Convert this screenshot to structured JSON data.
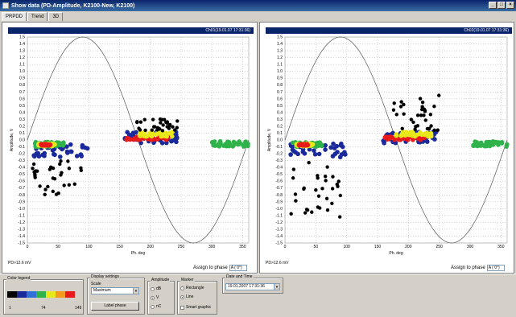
{
  "window": {
    "title": "Show data (PD-Amplitude, K2100-New, K2100)"
  },
  "tabs": [
    {
      "label": "PRPDD"
    },
    {
      "label": "Trend"
    },
    {
      "label": "3D"
    }
  ],
  "panels": [
    {
      "header": "Ch01(19.01.07 17:31:36)",
      "pd_label": "PD>12.6 mV",
      "assign_label": "Assign to phase",
      "assign_value": "A ( 0°)"
    },
    {
      "header": "Ch02(19.01.07 17:31:36)",
      "pd_label": "PD>12.6 mV",
      "assign_label": "Assign to phase",
      "assign_value": "A ( 0°)"
    }
  ],
  "bottom": {
    "color_legend": {
      "title": "Color legend",
      "min": "1",
      "mid": "74",
      "max": "149",
      "colors": [
        "#000000",
        "#1a2a9a",
        "#2f6fd6",
        "#2fb24a",
        "#e8e81a",
        "#f59a1a",
        "#e81a1a"
      ]
    },
    "display_settings": {
      "title": "Display settings",
      "scale_label": "Scale",
      "scale_value": "Maximum",
      "button_label": "Label phase"
    },
    "amplitude": {
      "title": "Amplitude",
      "options": [
        "dB",
        "V",
        "nC"
      ],
      "selected": 1
    },
    "marker": {
      "title": "Marker",
      "options": [
        "Rectangle",
        "Line"
      ],
      "selected": 1,
      "checkbox_label": "Smart graphic"
    },
    "date_time": {
      "title": "Date and Time",
      "value": "19.01.2007 17:31:36"
    }
  },
  "chart_data": [
    {
      "type": "scatter",
      "title": "Ch01(19.01.07 17:31:36)",
      "xlabel": "Ph. deg",
      "ylabel": "Amplitude, V",
      "xlim": [
        0,
        360
      ],
      "ylim": [
        -1.5,
        1.5
      ],
      "x_ticks": [
        0,
        50,
        100,
        150,
        200,
        250,
        300,
        350
      ],
      "y_ticks": [
        1.5,
        1.4,
        1.3,
        1.2,
        1.1,
        1.0,
        0.9,
        0.8,
        0.7,
        0.6,
        0.5,
        0.4,
        0.3,
        0.2,
        0.1,
        0.0,
        -0.1,
        -0.2,
        -0.3,
        -0.4,
        -0.5,
        -0.6,
        -0.7,
        -0.8,
        -0.9,
        -1.0,
        -1.1,
        -1.2,
        -1.3,
        -1.4,
        -1.5
      ],
      "reference": "sine, amplitude 1.5, period 360 deg",
      "clusters": [
        {
          "xr": [
            8,
            98
          ],
          "yr": [
            -0.05,
            -0.25
          ],
          "color": "#1a2a9a"
        },
        {
          "xr": [
            12,
            60
          ],
          "yr": [
            -0.03,
            -0.1
          ],
          "color": "#2fb24a"
        },
        {
          "xr": [
            18,
            45
          ],
          "yr": [
            -0.05,
            -0.09
          ],
          "color": "#e8e81a"
        },
        {
          "xr": [
            22,
            38
          ],
          "yr": [
            -0.06,
            -0.08
          ],
          "color": "#e81a1a"
        },
        {
          "xr": [
            8,
            90
          ],
          "yr": [
            -0.3,
            -0.85
          ],
          "color": "#000000"
        },
        {
          "xr": [
            155,
            245
          ],
          "yr": [
            -0.05,
            0.12
          ],
          "color": "#1a2a9a"
        },
        {
          "xr": [
            160,
            230
          ],
          "yr": [
            0.0,
            0.05
          ],
          "color": "#e81a1a"
        },
        {
          "xr": [
            180,
            240
          ],
          "yr": [
            0.05,
            0.12
          ],
          "color": "#e8e81a"
        },
        {
          "xr": [
            175,
            245
          ],
          "yr": [
            0.12,
            0.32
          ],
          "color": "#000000"
        },
        {
          "xr": [
            300,
            360
          ],
          "yr": [
            -0.1,
            -0.02
          ],
          "color": "#2fb24a"
        }
      ]
    },
    {
      "type": "scatter",
      "title": "Ch02(19.01.07 17:31:36)",
      "xlabel": "Ph. deg",
      "ylabel": "Amplitude, V",
      "xlim": [
        0,
        360
      ],
      "ylim": [
        -1.5,
        1.5
      ],
      "x_ticks": [
        0,
        50,
        100,
        150,
        200,
        250,
        300,
        350
      ],
      "y_ticks": [
        1.5,
        1.4,
        1.3,
        1.2,
        1.1,
        1.0,
        0.9,
        0.8,
        0.7,
        0.6,
        0.5,
        0.4,
        0.3,
        0.2,
        0.1,
        0.0,
        -0.1,
        -0.2,
        -0.3,
        -0.4,
        -0.5,
        -0.6,
        -0.7,
        -0.8,
        -0.9,
        -1.0,
        -1.1,
        -1.2,
        -1.3,
        -1.4,
        -1.5
      ],
      "reference": "sine, amplitude 1.5, period 360 deg",
      "clusters": [
        {
          "xr": [
            8,
            98
          ],
          "yr": [
            -0.05,
            -0.25
          ],
          "color": "#1a2a9a"
        },
        {
          "xr": [
            12,
            60
          ],
          "yr": [
            -0.03,
            -0.1
          ],
          "color": "#2fb24a"
        },
        {
          "xr": [
            18,
            45
          ],
          "yr": [
            -0.05,
            -0.09
          ],
          "color": "#e8e81a"
        },
        {
          "xr": [
            22,
            38
          ],
          "yr": [
            -0.06,
            -0.08
          ],
          "color": "#e81a1a"
        },
        {
          "xr": [
            8,
            90
          ],
          "yr": [
            -0.3,
            -1.15
          ],
          "color": "#000000"
        },
        {
          "xr": [
            155,
            245
          ],
          "yr": [
            -0.05,
            0.12
          ],
          "color": "#1a2a9a"
        },
        {
          "xr": [
            160,
            230
          ],
          "yr": [
            0.0,
            0.05
          ],
          "color": "#e81a1a"
        },
        {
          "xr": [
            180,
            240
          ],
          "yr": [
            0.05,
            0.12
          ],
          "color": "#e8e81a"
        },
        {
          "xr": [
            175,
            250
          ],
          "yr": [
            0.12,
            0.65
          ],
          "color": "#000000"
        },
        {
          "xr": [
            300,
            360
          ],
          "yr": [
            -0.1,
            -0.02
          ],
          "color": "#2fb24a"
        }
      ]
    }
  ]
}
